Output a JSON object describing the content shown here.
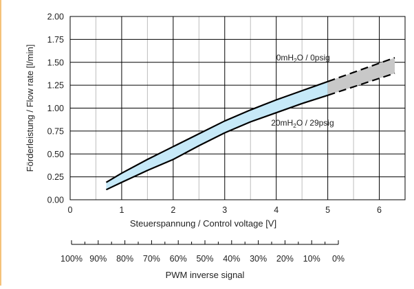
{
  "chart_data": {
    "type": "area",
    "xlabel": "Steuerspannung / Control voltage [V]",
    "ylabel": "Förderleistung / Flow rate [l/min]",
    "xlim": [
      0,
      6.5
    ],
    "ylim": [
      0,
      2.0
    ],
    "x_ticks": [
      "0",
      "1",
      "2",
      "3",
      "4",
      "5",
      "6"
    ],
    "y_ticks": [
      "0.00",
      "0.25",
      "0.50",
      "0.75",
      "1.00",
      "1.25",
      "1.50",
      "1.75",
      "2.00"
    ],
    "grid": "major and minor",
    "series": [
      {
        "name": "0mH2O / 0psig",
        "x": [
          0.7,
          1.0,
          1.5,
          2.0,
          2.5,
          3.0,
          3.5,
          4.0,
          4.5,
          5.0
        ],
        "y": [
          0.19,
          0.29,
          0.44,
          0.58,
          0.72,
          0.86,
          0.98,
          1.09,
          1.19,
          1.29
        ]
      },
      {
        "name": "20mH2O / 29psig",
        "x": [
          0.7,
          1.0,
          1.5,
          2.0,
          2.5,
          3.0,
          3.5,
          4.0,
          4.5,
          5.0
        ],
        "y": [
          0.11,
          0.19,
          0.32,
          0.44,
          0.59,
          0.73,
          0.85,
          0.95,
          1.05,
          1.14
        ]
      }
    ],
    "extrapolated": {
      "style": "dashed",
      "x": [
        5.0,
        6.3
      ],
      "upper": [
        1.29,
        1.55
      ],
      "lower": [
        1.14,
        1.38
      ]
    },
    "annotations": [
      {
        "base": "0mH",
        "sub": "2",
        "rest": "O / 0psig"
      },
      {
        "base": "20mH",
        "sub": "2",
        "rest": "O / 29psig"
      }
    ],
    "band_colors": {
      "measured": "#c6e9f8",
      "extrapolated": "#c8c8c8"
    },
    "secondary_axis": {
      "label": "PWM inverse signal",
      "ticks": [
        "100%",
        "90%",
        "80%",
        "70%",
        "60%",
        "50%",
        "40%",
        "30%",
        "20%",
        "10%",
        "0%"
      ]
    }
  }
}
